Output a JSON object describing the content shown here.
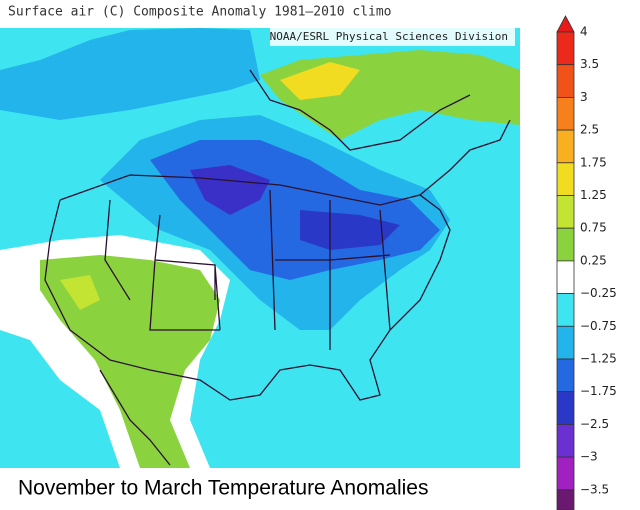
{
  "map": {
    "title": "Surface air (C) Composite Anomaly 1981–2010 climo",
    "source": "NOAA/ESRL Physical Sciences Division",
    "caption": "November to March Temperature Anomalies"
  },
  "colorbar": {
    "labels": [
      "4",
      "3.5",
      "3",
      "2.5",
      "1.75",
      "1.25",
      "0.75",
      "0.25",
      "−0.25",
      "−0.75",
      "−1.25",
      "−1.75",
      "−2.5",
      "−3",
      "−3.5"
    ],
    "top_color": "#e81a1a",
    "band_colors": [
      "#ec2a1c",
      "#f0521a",
      "#f5801c",
      "#f8b020",
      "#f2dc22",
      "#c4e434",
      "#8ad23e",
      "#ffffff",
      "#3ee4f0",
      "#22b4ea",
      "#2468e2",
      "#2a38c8",
      "#6a30d2",
      "#a020c0"
    ],
    "bottom_color": "#6a1870"
  }
}
